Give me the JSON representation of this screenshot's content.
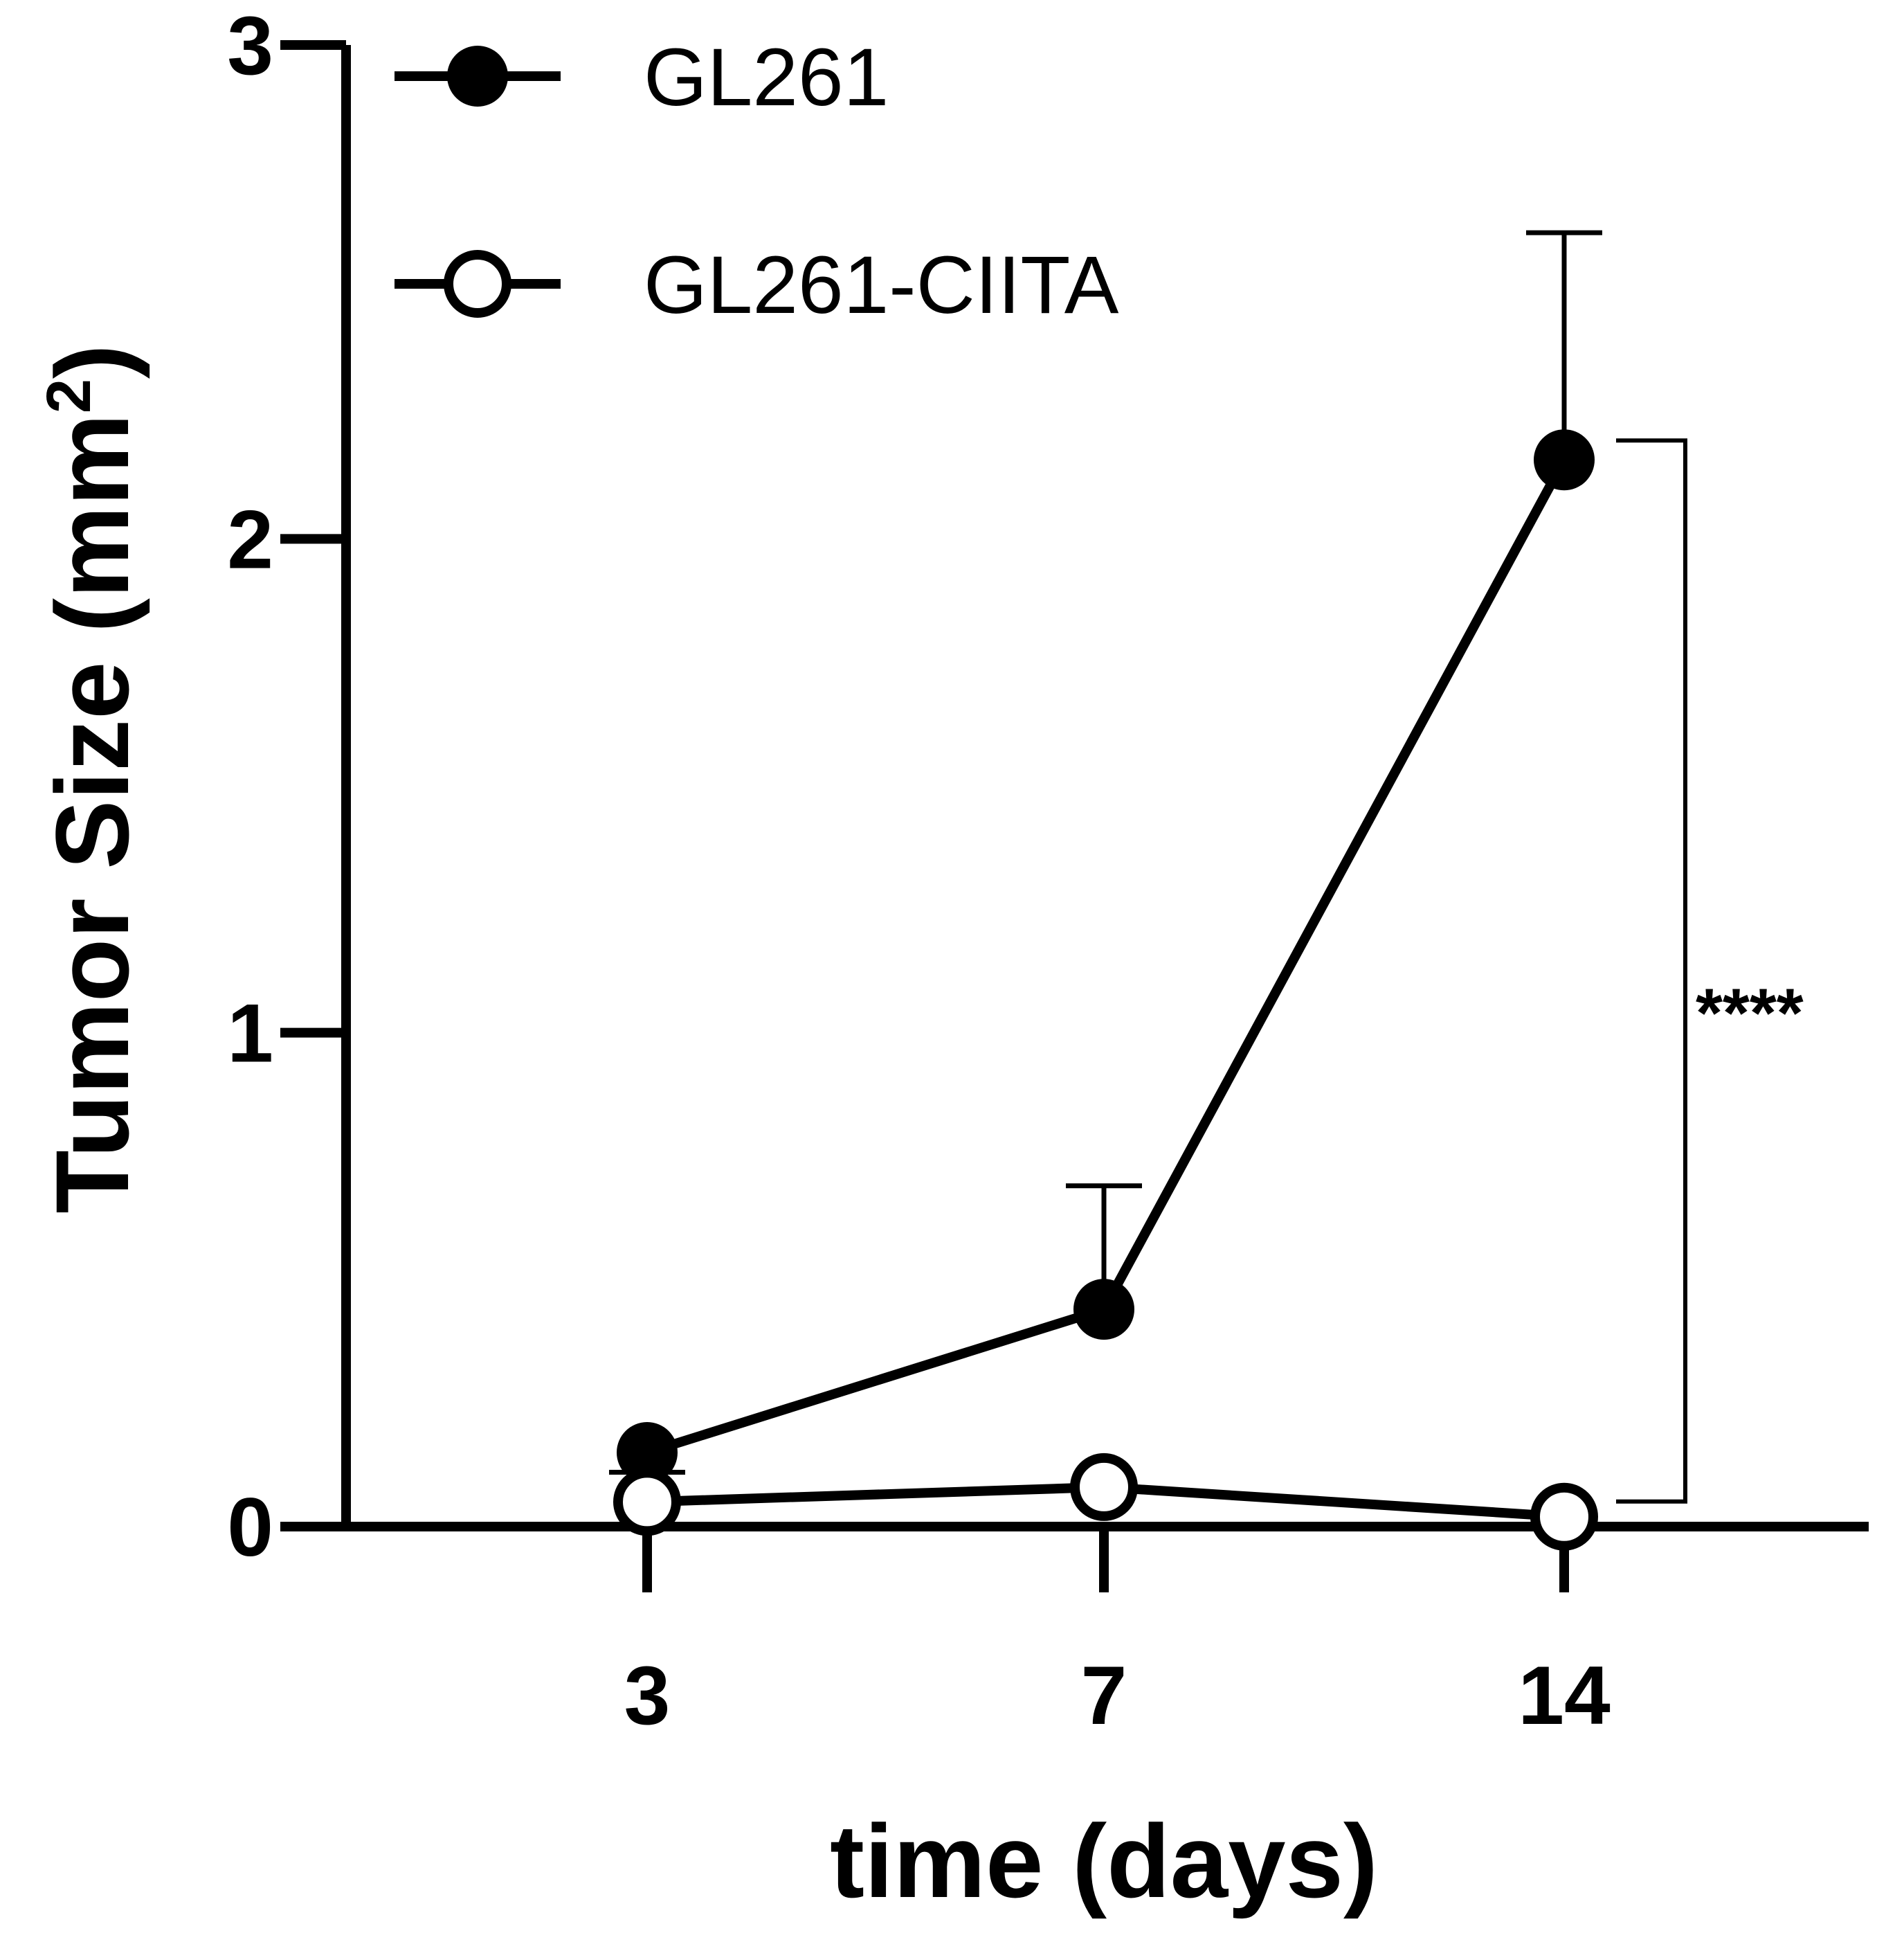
{
  "chart_data": {
    "type": "line",
    "xlabel": "time (days)",
    "ylabel": "Tumor Size (mm",
    "ylabel_superscript": "2",
    "ylabel_close": ")",
    "x_categories": [
      "3",
      "7",
      "14"
    ],
    "ylim": [
      0,
      3
    ],
    "yticks": [
      "0",
      "1",
      "2",
      "3"
    ],
    "grid": false,
    "legend_position": "top-left",
    "series": [
      {
        "name": "GL261",
        "marker": "filled-circle",
        "values": [
          0.15,
          0.44,
          2.16
        ],
        "error_upper": [
          0.12,
          0.69,
          2.62
        ]
      },
      {
        "name": "GL261-CIITA",
        "marker": "open-circle",
        "values": [
          0.05,
          0.08,
          0.02
        ],
        "error_upper": [
          0.11,
          0.08,
          0.02
        ]
      }
    ],
    "annotation": {
      "text": "****",
      "between_series_at": "14"
    },
    "colors": {
      "line": "#000000",
      "marker_fill_open": "#ffffff"
    }
  }
}
